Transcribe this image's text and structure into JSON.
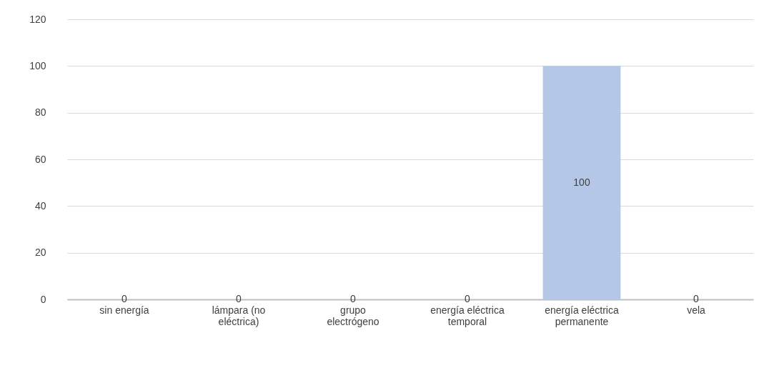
{
  "chart_data": {
    "type": "bar",
    "categories": [
      "sin energía",
      "lámpara (no eléctrica)",
      "grupo electrógeno",
      "energía eléctrica temporal",
      "energía eléctrica permanente",
      "vela"
    ],
    "values": [
      0,
      0,
      0,
      0,
      100,
      0
    ],
    "color": "#b4c7e7",
    "ylim": [
      0,
      120
    ],
    "yticks": [
      0,
      20,
      40,
      60,
      80,
      100,
      120
    ],
    "grid": "y",
    "data_labels": true
  }
}
